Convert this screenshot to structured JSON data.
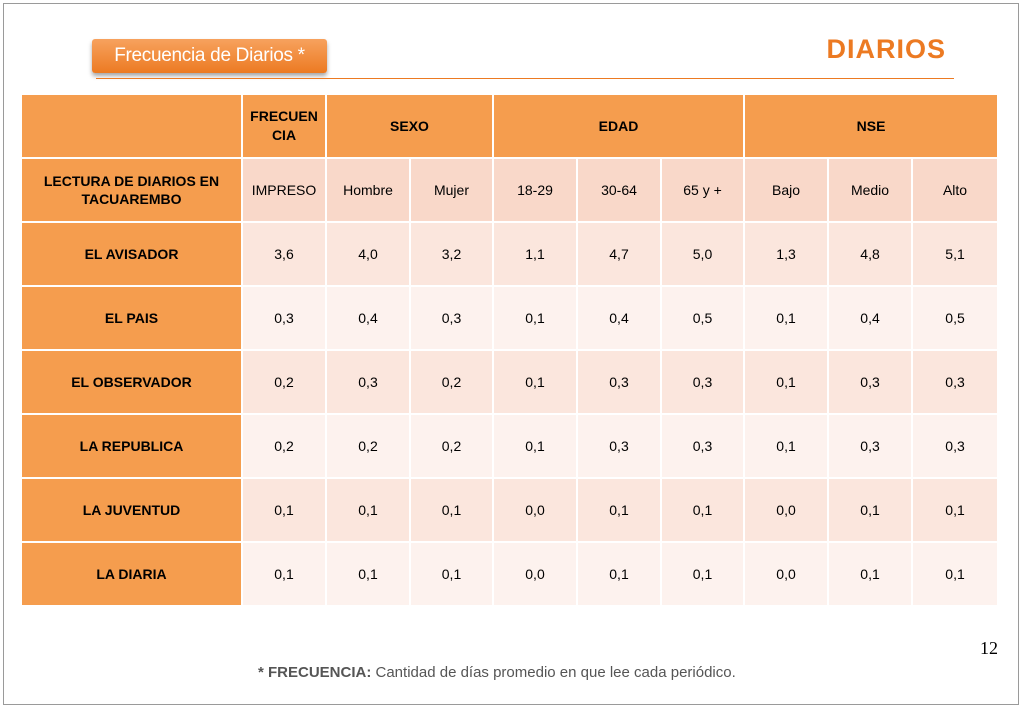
{
  "header": {
    "tag_label": "Frecuencia de Diarios  *",
    "brand": "DIARIOS"
  },
  "table": {
    "group_headers": {
      "frecuencia": "FRECUEN CIA",
      "sexo": "SEXO",
      "edad": "EDAD",
      "nse": "NSE"
    },
    "row_header_title": "LECTURA DE DIARIOS EN TACUAREMBO",
    "subheaders": [
      "IMPRESO",
      "Hombre",
      "Mujer",
      "18-29",
      "30-64",
      "65 y +",
      "Bajo",
      "Medio",
      "Alto"
    ],
    "rows": [
      {
        "label": "EL AVISADOR",
        "values": [
          "3,6",
          "4,0",
          "3,2",
          "1,1",
          "4,7",
          "5,0",
          "1,3",
          "4,8",
          "5,1"
        ]
      },
      {
        "label": "EL PAIS",
        "values": [
          "0,3",
          "0,4",
          "0,3",
          "0,1",
          "0,4",
          "0,5",
          "0,1",
          "0,4",
          "0,5"
        ]
      },
      {
        "label": "EL OBSERVADOR",
        "values": [
          "0,2",
          "0,3",
          "0,2",
          "0,1",
          "0,3",
          "0,3",
          "0,1",
          "0,3",
          "0,3"
        ]
      },
      {
        "label": "LA REPUBLICA",
        "values": [
          "0,2",
          "0,2",
          "0,2",
          "0,1",
          "0,3",
          "0,3",
          "0,1",
          "0,3",
          "0,3"
        ]
      },
      {
        "label": "LA JUVENTUD",
        "values": [
          "0,1",
          "0,1",
          "0,1",
          "0,0",
          "0,1",
          "0,1",
          "0,0",
          "0,1",
          "0,1"
        ]
      },
      {
        "label": "LA DIARIA",
        "values": [
          "0,1",
          "0,1",
          "0,1",
          "0,0",
          "0,1",
          "0,1",
          "0,0",
          "0,1",
          "0,1"
        ]
      }
    ]
  },
  "page_number": "12",
  "footnote": {
    "bold": "* FRECUENCIA:",
    "text": " Cantidad  de días promedio en que lee cada periódico."
  },
  "colors": {
    "accent": "#ec7a22",
    "header_fill": "#f59d4e",
    "cell_light": "#fdf2ee",
    "cell_mid": "#fbe6dd",
    "cell_sub": "#f9d8c9"
  }
}
